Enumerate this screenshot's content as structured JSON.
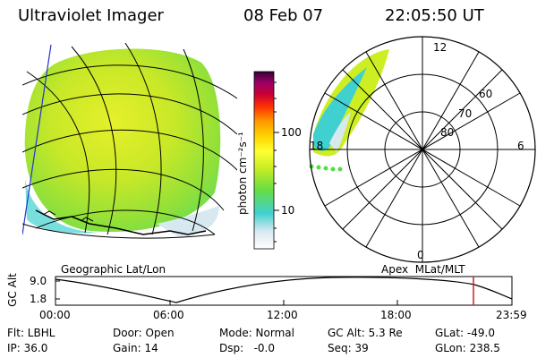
{
  "header": {
    "instrument": "Ultraviolet Imager",
    "date": "08 Feb 07",
    "time": "22:05:50 UT"
  },
  "colorbar": {
    "unit": "photon cm⁻²s⁻¹",
    "ticks": [
      "100",
      "10"
    ],
    "scale": "log",
    "colors": [
      "#ffffff",
      "#d8e8f0",
      "#40d0d0",
      "#66dd44",
      "#ccee22",
      "#ffff33",
      "#ffd700",
      "#ff9900",
      "#ff3300",
      "#cc0033",
      "#990066",
      "#330033"
    ]
  },
  "left_panel": {
    "label": "Geographic Lat/Lon"
  },
  "right_panel": {
    "label": "Apex  MLat/MLT",
    "lat_labels": [
      "80",
      "70",
      "60"
    ],
    "mlt_labels": {
      "top": "12",
      "left": "18",
      "right": "6",
      "bottom": "0"
    }
  },
  "altitude_plot": {
    "axis_label": "GC Alt",
    "y_ticks": [
      "9.0",
      "1.8"
    ],
    "x_ticks": [
      "00:00",
      "06:00",
      "12:00",
      "18:00",
      "23:59"
    ],
    "marker_color": "#cc2222"
  },
  "status": {
    "flt": "Flt: LBHL",
    "ip": "IP: 36.0",
    "door": "Door: Open",
    "gain": "Gain: 14",
    "mode": "Mode: Normal",
    "dsp": "Dsp:   -0.0",
    "gc_alt": "GC Alt: 5.3 Re",
    "seq": "Seq: 39",
    "glat": "GLat: -49.0",
    "glon": "GLon: 238.5"
  }
}
